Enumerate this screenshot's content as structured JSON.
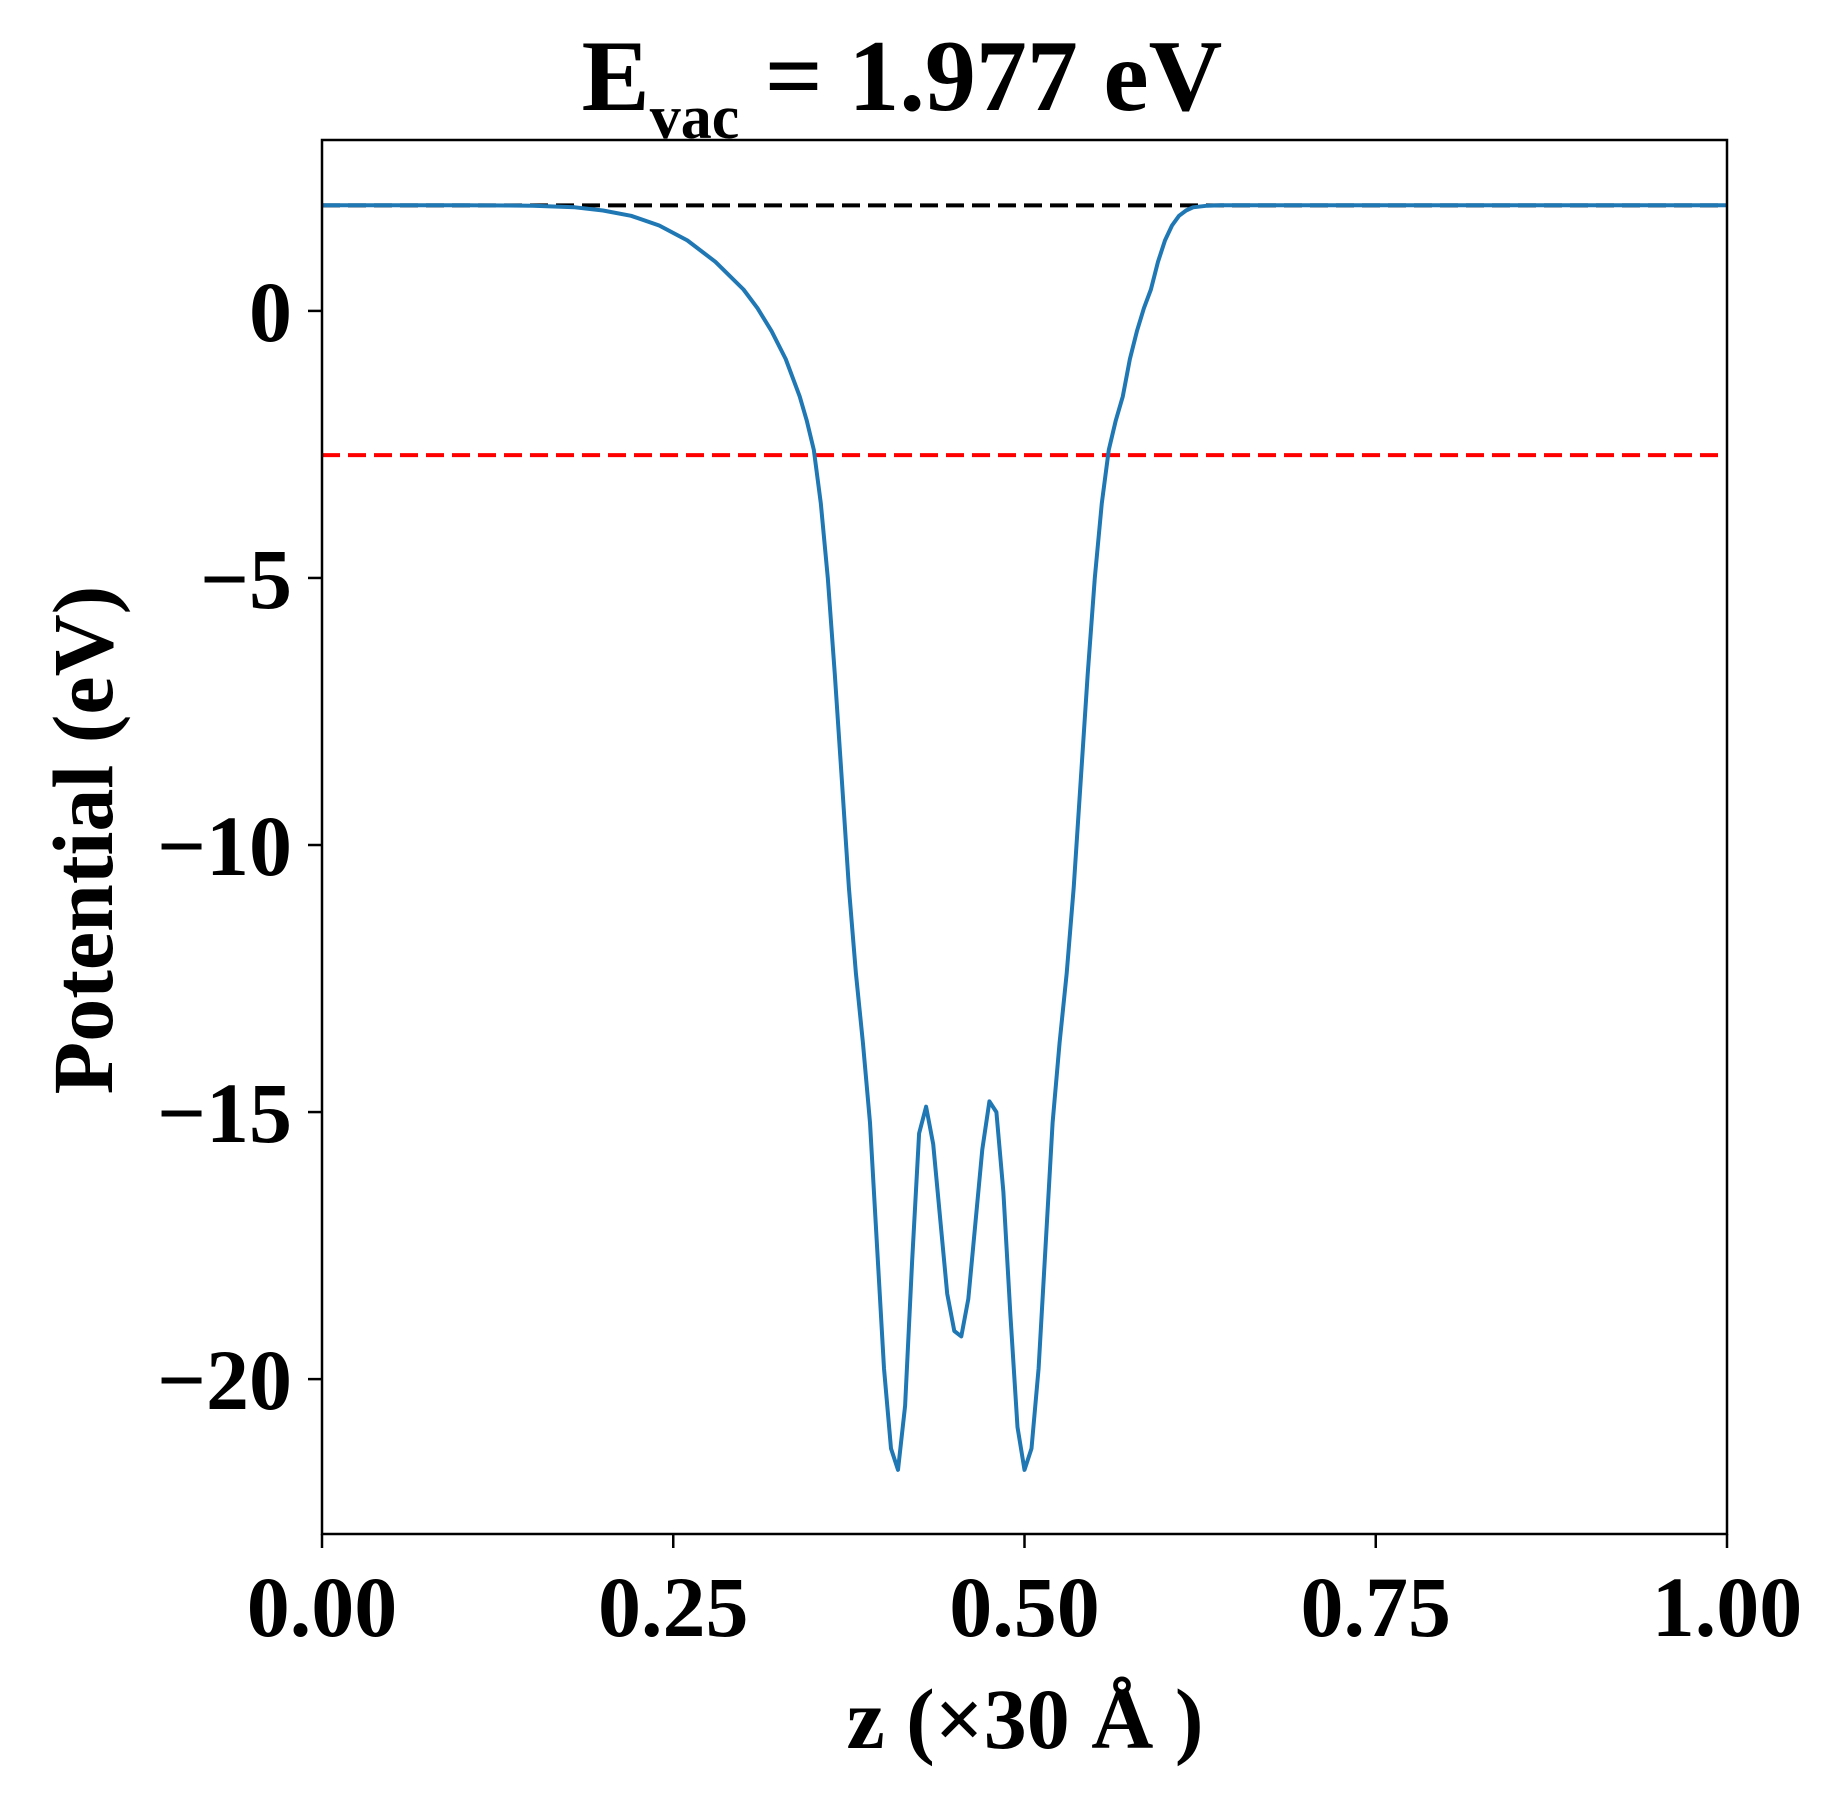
{
  "chart_data": {
    "type": "line",
    "title": {
      "main": "E",
      "subscript": "vac",
      "rest": " = 1.977 eV"
    },
    "xlabel": "z (×30 Å )",
    "ylabel": "Potential (eV)",
    "xlim": [
      0.0,
      1.0
    ],
    "ylim": [
      -22.9,
      3.2
    ],
    "xticks": [
      0.0,
      0.25,
      0.5,
      0.75,
      1.0
    ],
    "xtick_labels": [
      "0.00",
      "0.25",
      "0.50",
      "0.75",
      "1.00"
    ],
    "yticks": [
      0,
      -5,
      -10,
      -15,
      -20
    ],
    "ytick_labels": [
      "0",
      "−5",
      "−10",
      "−15",
      "−20"
    ],
    "grid": false,
    "series": [
      {
        "color": "#1f77b4",
        "x": [
          0.0,
          0.05,
          0.1,
          0.15,
          0.18,
          0.2,
          0.22,
          0.24,
          0.26,
          0.28,
          0.3,
          0.31,
          0.32,
          0.33,
          0.34,
          0.345,
          0.35,
          0.355,
          0.36,
          0.365,
          0.37,
          0.375,
          0.38,
          0.385,
          0.39,
          0.395,
          0.4,
          0.405,
          0.41,
          0.415,
          0.42,
          0.425,
          0.43,
          0.435,
          0.44,
          0.445,
          0.45,
          0.455,
          0.46,
          0.465,
          0.47,
          0.475,
          0.48,
          0.485,
          0.49,
          0.495,
          0.5,
          0.505,
          0.51,
          0.515,
          0.52,
          0.525,
          0.53,
          0.535,
          0.54,
          0.545,
          0.55,
          0.555,
          0.56,
          0.565,
          0.57,
          0.575,
          0.58,
          0.585,
          0.59,
          0.595,
          0.6,
          0.605,
          0.61,
          0.615,
          0.62,
          0.63,
          0.64,
          0.65,
          0.66,
          0.68,
          0.7,
          0.72,
          0.74,
          0.76,
          0.78,
          0.8,
          0.85,
          0.9,
          0.95,
          1.0
        ],
        "y": [
          1.98,
          1.98,
          1.98,
          1.97,
          1.94,
          1.88,
          1.78,
          1.6,
          1.32,
          0.92,
          0.4,
          0.05,
          -0.38,
          -0.9,
          -1.6,
          -2.05,
          -2.6,
          -3.6,
          -5.0,
          -6.8,
          -8.8,
          -10.8,
          -12.4,
          -13.7,
          -15.2,
          -17.5,
          -19.8,
          -21.3,
          -21.7,
          -20.5,
          -17.8,
          -15.4,
          -14.9,
          -15.6,
          -17.0,
          -18.4,
          -19.1,
          -19.2,
          -18.5,
          -17.1,
          -15.7,
          -14.8,
          -15.0,
          -16.5,
          -18.8,
          -20.9,
          -21.7,
          -21.3,
          -19.8,
          -17.5,
          -15.2,
          -13.7,
          -12.4,
          -10.8,
          -8.8,
          -6.8,
          -5.0,
          -3.6,
          -2.6,
          -2.05,
          -1.6,
          -0.9,
          -0.38,
          0.05,
          0.4,
          0.92,
          1.32,
          1.6,
          1.78,
          1.88,
          1.94,
          1.97,
          1.98,
          1.98,
          1.98,
          1.98,
          1.98,
          1.98,
          1.98,
          1.98,
          1.98,
          1.98,
          1.98,
          1.98,
          1.98,
          1.98
        ]
      }
    ],
    "hlines": [
      {
        "y": 1.977,
        "color": "#000000",
        "style": "dashed"
      },
      {
        "y": -2.7,
        "color": "#ff0000",
        "style": "dashed"
      }
    ]
  }
}
